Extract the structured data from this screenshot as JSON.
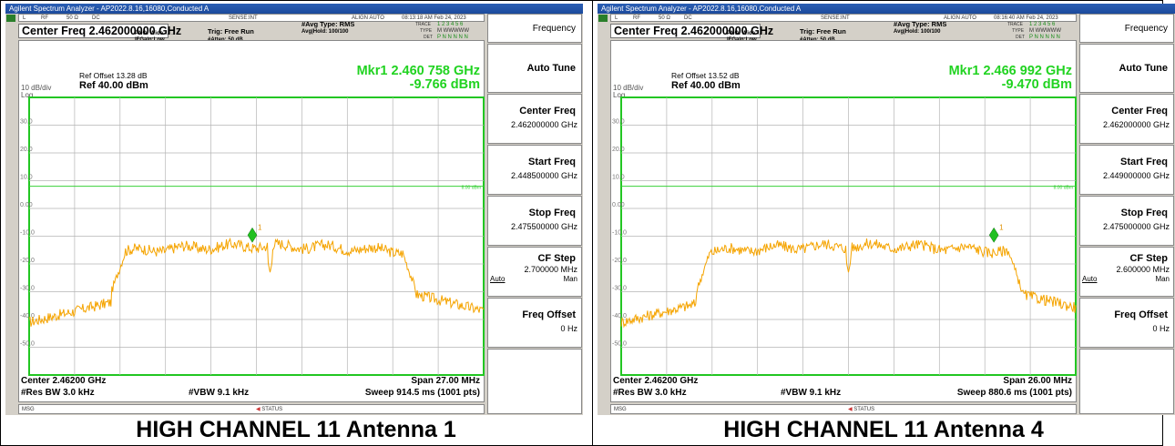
{
  "panels": [
    {
      "window_title": "Agilent Spectrum Analyzer - AP2022.8.16,16080,Conducted A",
      "status": {
        "input": "L",
        "rf": "RF",
        "imp": "50 Ω",
        "dc": "DC",
        "sense": "SENSE:INT",
        "align": "ALIGN AUTO",
        "timestamp": "08:13:18 AM Feb 24, 2023"
      },
      "center_freq_title": "Center Freq 2.462000000 GHz",
      "pno": "PNO: Wide ↔→",
      "ifgain": "IFGain:Low",
      "trig": "Trig: Free Run",
      "atten": "#Atten: 50 dB",
      "avg_type": "#Avg Type: RMS",
      "avg_hold": "Avg|Hold: 100/100",
      "trace_label": "TRACE",
      "trace_nums": "1 2 3 4 5 6",
      "type_label": "TYPE",
      "type_vals": "M WWWWW",
      "det_label": "DET",
      "det_vals": "P N N N N N",
      "ref_offset": "Ref Offset 13.28 dB",
      "ref_level": "Ref 40.00 dBm",
      "scale": "10 dB/div",
      "log": "Log",
      "marker_freq": "Mkr1 2.460 758 GHz",
      "marker_val": "-9.766 dBm",
      "center": "Center 2.46200 GHz",
      "span": "Span 27.00 MHz",
      "res_bw": "#Res BW 3.0 kHz",
      "vbw": "#VBW 9.1 kHz",
      "sweep": "Sweep  914.5 ms (1001 pts)",
      "msg": "MSG",
      "status_label": "STATUS",
      "softkeys": {
        "title": "Frequency",
        "auto_tune": "Auto Tune",
        "center_freq": "Center Freq",
        "center_freq_val": "2.462000000 GHz",
        "start_freq": "Start Freq",
        "start_freq_val": "2.448500000 GHz",
        "stop_freq": "Stop Freq",
        "stop_freq_val": "2.475500000 GHz",
        "cf_step": "CF Step",
        "cf_step_val": "2.700000 MHz",
        "auto": "Auto",
        "man": "Man",
        "freq_offset": "Freq Offset",
        "freq_offset_val": "0 Hz"
      },
      "caption": "HIGH CHANNEL 11 Antenna 1",
      "trace": {
        "edges_x": [
          0.211,
          0.822
        ],
        "dip_x": 0.53,
        "marker_x": 0.491,
        "marker_label": "1"
      }
    },
    {
      "window_title": "Agilent Spectrum Analyzer - AP2022.8.16,16080,Conducted A",
      "status": {
        "input": "L",
        "rf": "RF",
        "imp": "50 Ω",
        "dc": "DC",
        "sense": "SENSE:INT",
        "align": "ALIGN AUTO",
        "timestamp": "08:16:40 AM Feb 24, 2023"
      },
      "center_freq_title": "Center Freq 2.462000000 GHz",
      "pno": "PNO: Wide ↔→",
      "ifgain": "IFGain:Low",
      "trig": "Trig: Free Run",
      "atten": "#Atten: 50 dB",
      "avg_type": "#Avg Type: RMS",
      "avg_hold": "Avg|Hold: 100/100",
      "trace_label": "TRACE",
      "trace_nums": "1 2 3 4 5 6",
      "type_label": "TYPE",
      "type_vals": "M WWWWW",
      "det_label": "DET",
      "det_vals": "P N N N N N",
      "ref_offset": "Ref Offset 13.52 dB",
      "ref_level": "Ref 40.00 dBm",
      "scale": "10 dB/div",
      "log": "Log",
      "marker_freq": "Mkr1 2.466 992 GHz",
      "marker_val": "-9.470 dBm",
      "center": "Center 2.46200 GHz",
      "span": "Span 26.00 MHz",
      "res_bw": "#Res BW 3.0 kHz",
      "vbw": "#VBW 9.1 kHz",
      "sweep": "Sweep  880.6 ms (1001 pts)",
      "msg": "MSG",
      "status_label": "STATUS",
      "softkeys": {
        "title": "Frequency",
        "auto_tune": "Auto Tune",
        "center_freq": "Center Freq",
        "center_freq_val": "2.462000000 GHz",
        "start_freq": "Start Freq",
        "start_freq_val": "2.449000000 GHz",
        "stop_freq": "Stop Freq",
        "stop_freq_val": "2.475000000 GHz",
        "cf_step": "CF Step",
        "cf_step_val": "2.600000 MHz",
        "auto": "Auto",
        "man": "Man",
        "freq_offset": "Freq Offset",
        "freq_offset_val": "0 Hz"
      },
      "caption": "HIGH CHANNEL 11 Antenna 4",
      "trace": {
        "edges_x": [
          0.195,
          0.853
        ],
        "dip_x": 0.5,
        "marker_x": 0.82,
        "marker_label": "1"
      }
    }
  ],
  "plot": {
    "y_ticks": [
      "30.0",
      "20.0",
      "10.0",
      "0.00",
      "-10.0",
      "-20.0",
      "-30.0",
      "-40.0",
      "-50.0"
    ],
    "ref_line_label": "8.00 dBm",
    "ref_line_dbm": 8.0,
    "top_dbm": 40.0,
    "db_per_div": 10,
    "colors": {
      "trace": "#f5a400",
      "grid": "#b5b5b5",
      "ref_line": "#37d037",
      "marker": "#21c021",
      "border": "#22c622"
    }
  }
}
